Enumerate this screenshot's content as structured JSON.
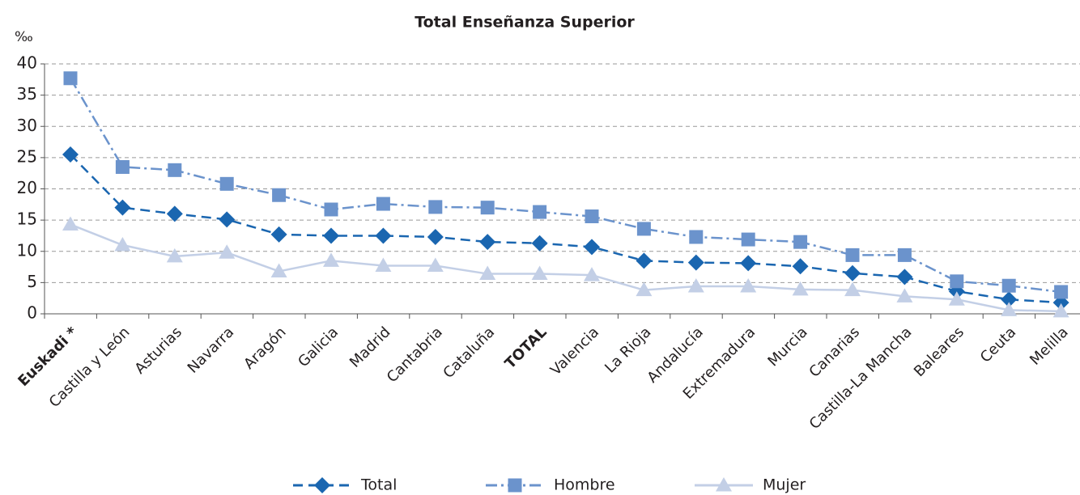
{
  "chart_data": {
    "type": "line",
    "title": "Total Enseñanza Superior",
    "y_unit": "‰",
    "categories": [
      "Euskadi *",
      "Castilla y León",
      "Asturias",
      "Navarra",
      "Aragón",
      "Galicia",
      "Madrid",
      "Cantabria",
      "Cataluña",
      "TOTAL",
      "Valencia",
      "La Rioja",
      "Andalucía",
      "Extremadura",
      "Murcia",
      "Canarias",
      "Castilla-La Mancha",
      "Baleares",
      "Ceuta",
      "Melilla"
    ],
    "bold_category_indices": [
      0,
      9
    ],
    "series": [
      {
        "name": "Total",
        "color": "#1a66b0",
        "marker": "diamond",
        "dash": "dashed",
        "values": [
          25.5,
          17,
          16,
          15.1,
          12.7,
          12.5,
          12.5,
          12.3,
          11.5,
          11.3,
          10.7,
          8.5,
          8.2,
          8.1,
          7.6,
          6.5,
          5.9,
          3.6,
          2.3,
          1.8
        ]
      },
      {
        "name": "Hombre",
        "color": "#6b93cc",
        "marker": "square",
        "dash": "dashdot",
        "values": [
          37.7,
          23.5,
          23,
          20.8,
          19,
          16.7,
          17.6,
          17.1,
          17,
          16.3,
          15.6,
          13.6,
          12.3,
          11.9,
          11.5,
          9.4,
          9.4,
          5.2,
          4.5,
          3.5
        ]
      },
      {
        "name": "Mujer",
        "color": "#c3cfe6",
        "marker": "triangle",
        "dash": "solid",
        "values": [
          14.3,
          11,
          9.2,
          9.8,
          6.8,
          8.5,
          7.7,
          7.7,
          6.4,
          6.4,
          6.2,
          3.8,
          4.4,
          4.4,
          3.9,
          3.8,
          2.8,
          2.3,
          0.6,
          0.4
        ]
      }
    ],
    "ylim": [
      0,
      40
    ],
    "yticks": [
      0,
      5,
      10,
      15,
      20,
      25,
      30,
      35,
      40
    ],
    "grid": true,
    "legend": "bottom"
  }
}
